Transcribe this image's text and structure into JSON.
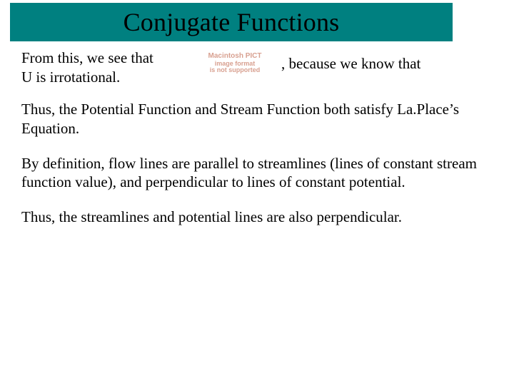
{
  "colors": {
    "title_bg": "#008080",
    "title_text": "#000000",
    "body_text": "#000000",
    "pict_text": "#d8a090",
    "page_bg": "#ffffff"
  },
  "typography": {
    "title_font_family": "Times New Roman",
    "title_font_size_pt": 27,
    "body_font_family": "Times New Roman",
    "body_font_size_pt": 16,
    "pict_font_family": "Arial",
    "pict_font_weight": "bold"
  },
  "title": "Conjugate Functions",
  "row1": {
    "left_line1": "From this, we see that",
    "left_line2": "U is irrotational.",
    "right": ", because we know that"
  },
  "pict_placeholder": {
    "line1": "Macintosh PICT",
    "line2": "image format",
    "line3": "is not supported"
  },
  "para1": "Thus, the Potential Function and Stream Function both satisfy La.Place’s Equation.",
  "para2": "By definition, flow lines are parallel to streamlines (lines of constant stream function value), and perpendicular to lines of constant potential.",
  "para3": "Thus, the streamlines and potential lines are also perpendicular."
}
